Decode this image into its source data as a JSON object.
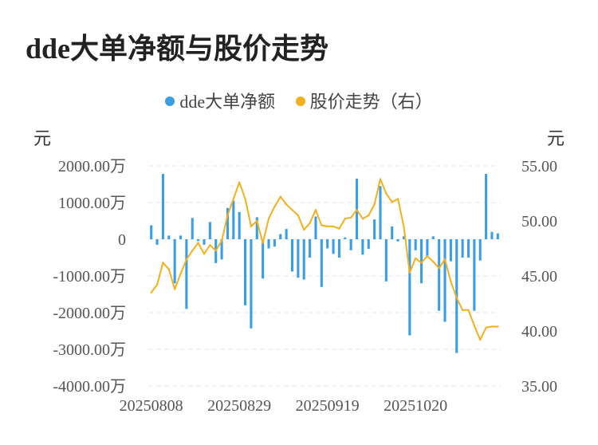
{
  "title": "dde大单净额与股价走势",
  "legend": {
    "series1": "dde大单净额",
    "series2": "股价走势（右）"
  },
  "colors": {
    "bars": "#3a9ee4",
    "line": "#f2b01e",
    "grid": "#e6e6e6"
  },
  "chart_data": {
    "type": "bar+line",
    "title": "dde大单净额与股价走势",
    "y_left_unit": "元",
    "y_right_unit": "元",
    "y_left_ticks": [
      2000,
      1000,
      0,
      -1000,
      -2000,
      -3000,
      -4000
    ],
    "y_left_tick_labels": [
      "2000.00万",
      "1000.00万",
      "0",
      "-1000.00万",
      "-2000.00万",
      "-3000.00万",
      "-4000.00万"
    ],
    "y_left_range": [
      -4000,
      2000
    ],
    "y_right_ticks": [
      55,
      50,
      45,
      40,
      35
    ],
    "y_right_tick_labels": [
      "55.00",
      "50.00",
      "45.00",
      "40.00",
      "35.00"
    ],
    "y_right_range": [
      35,
      55
    ],
    "x_tick_labels": [
      "20250808",
      "20250829",
      "20250919",
      "20251020"
    ],
    "x_tick_indices": [
      0,
      15,
      30,
      45
    ],
    "series": [
      {
        "name": "dde大单净额",
        "axis": "left",
        "unit": "万元",
        "values": [
          380,
          -150,
          1780,
          100,
          -1200,
          100,
          -1900,
          580,
          -50,
          -150,
          470,
          -650,
          -550,
          850,
          1050,
          740,
          -1800,
          -2430,
          600,
          -1070,
          -250,
          -200,
          140,
          280,
          -880,
          -1050,
          -1100,
          -500,
          620,
          -1300,
          -250,
          -400,
          -500,
          50,
          -300,
          1650,
          -420,
          -260,
          540,
          1450,
          -1150,
          350,
          -60,
          80,
          -2620,
          -300,
          -1200,
          -450,
          80,
          -1950,
          -2250,
          -600,
          -3100,
          -500,
          -500,
          -1950,
          -580,
          1780,
          200,
          160
        ]
      },
      {
        "name": "股价走势（右）",
        "axis": "right",
        "unit": "元",
        "values": [
          43.5,
          44.2,
          46.2,
          45.6,
          43.8,
          45.2,
          46.5,
          47.3,
          48.0,
          47.0,
          47.8,
          47.3,
          48.2,
          50.5,
          52.0,
          53.5,
          52.0,
          49.5,
          50.0,
          48.0,
          50.2,
          51.3,
          52.2,
          51.5,
          51.0,
          50.5,
          49.2,
          49.8,
          51.0,
          49.6,
          49.5,
          49.5,
          49.3,
          50.2,
          50.3,
          51.0,
          50.2,
          50.5,
          51.5,
          53.8,
          52.5,
          51.7,
          52.0,
          49.5,
          45.3,
          46.6,
          46.2,
          46.8,
          46.3,
          45.7,
          46.5,
          44.5,
          43.0,
          41.9,
          41.9,
          40.5,
          39.2,
          40.3,
          40.4,
          40.4
        ]
      }
    ]
  }
}
